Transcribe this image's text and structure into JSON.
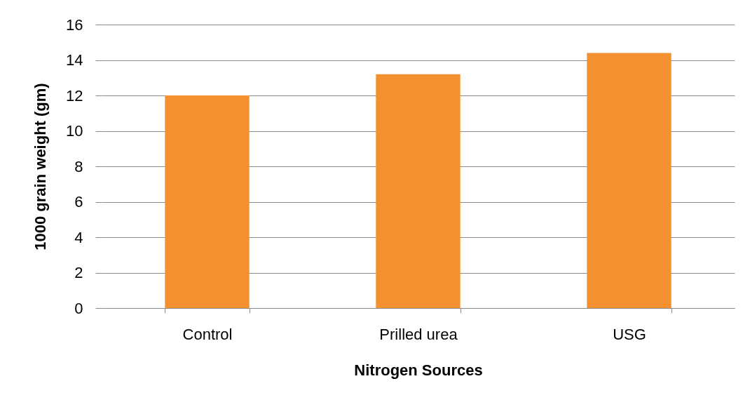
{
  "chart_data": {
    "type": "bar",
    "xlabel": "Nitrogen Sources",
    "ylabel": "1000 grain weight (gm)",
    "categories": [
      "Control",
      "Prilled urea",
      "USG"
    ],
    "values": [
      12.0,
      13.2,
      14.4
    ],
    "color": "#f39130",
    "ylim": [
      0,
      16
    ],
    "yticks": [
      0,
      2,
      4,
      6,
      8,
      10,
      12,
      14,
      16
    ],
    "grid": "y"
  }
}
